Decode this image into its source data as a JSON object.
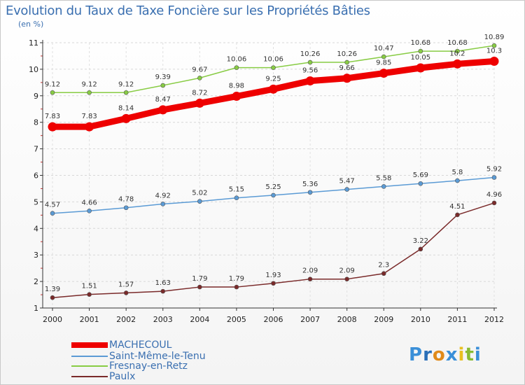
{
  "title": "Evolution du Taux de Taxe Foncière sur les Propriétés Bâties",
  "unit_label": "(en %)",
  "logo": "Proxiti",
  "chart_data": {
    "type": "line",
    "title": "Evolution du Taux de Taxe Foncière sur les Propriétés Bâties",
    "ylabel": "(en %)",
    "xlabel": "",
    "x": [
      "2000",
      "2001",
      "2002",
      "2003",
      "2004",
      "2005",
      "2006",
      "2007",
      "2008",
      "2009",
      "2010",
      "2011",
      "2012"
    ],
    "ylim": [
      1,
      11
    ],
    "yticks": [
      "1",
      "2",
      "3",
      "4",
      "5",
      "6",
      "7",
      "8",
      "9",
      "10",
      "11"
    ],
    "grid": true,
    "legend_position": "bottom-left",
    "series": [
      {
        "name": "MACHECOUL",
        "color": "#ee0000",
        "values": [
          7.83,
          7.83,
          8.14,
          8.47,
          8.72,
          8.98,
          9.25,
          9.56,
          9.66,
          9.85,
          10.05,
          10.2,
          10.3
        ],
        "labels": [
          "7.83",
          "7.83",
          "8.14",
          "8.47",
          "8.72",
          "8.98",
          "9.25",
          "9.56",
          "9.66",
          "9.85",
          "10.05",
          "10.2",
          "10.3"
        ]
      },
      {
        "name": "Saint-Même-le-Tenu",
        "color": "#5b9bd5",
        "values": [
          4.57,
          4.66,
          4.78,
          4.92,
          5.02,
          5.15,
          5.25,
          5.36,
          5.47,
          5.58,
          5.69,
          5.8,
          5.92
        ],
        "labels": [
          "4.57",
          "4.66",
          "4.78",
          "4.92",
          "5.02",
          "5.15",
          "5.25",
          "5.36",
          "5.47",
          "5.58",
          "5.69",
          "5.8",
          "5.92"
        ]
      },
      {
        "name": "Fresnay-en-Retz",
        "color": "#88cc44",
        "values": [
          9.12,
          9.12,
          9.12,
          9.39,
          9.67,
          10.06,
          10.06,
          10.26,
          10.26,
          10.47,
          10.68,
          10.68,
          10.89
        ],
        "labels": [
          "9.12",
          "9.12",
          "9.12",
          "9.39",
          "9.67",
          "10.06",
          "10.06",
          "10.26",
          "10.26",
          "10.47",
          "10.68",
          "10.68",
          "10.89"
        ]
      },
      {
        "name": "Paulx",
        "color": "#7a2a2a",
        "values": [
          1.39,
          1.51,
          1.57,
          1.63,
          1.79,
          1.79,
          1.93,
          2.09,
          2.09,
          2.3,
          3.22,
          4.51,
          4.96
        ],
        "labels": [
          "1.39",
          "1.51",
          "1.57",
          "1.63",
          "1.79",
          "1.79",
          "1.93",
          "2.09",
          "2.09",
          "2.3",
          "3.22",
          "4.51",
          "4.96"
        ]
      }
    ]
  }
}
